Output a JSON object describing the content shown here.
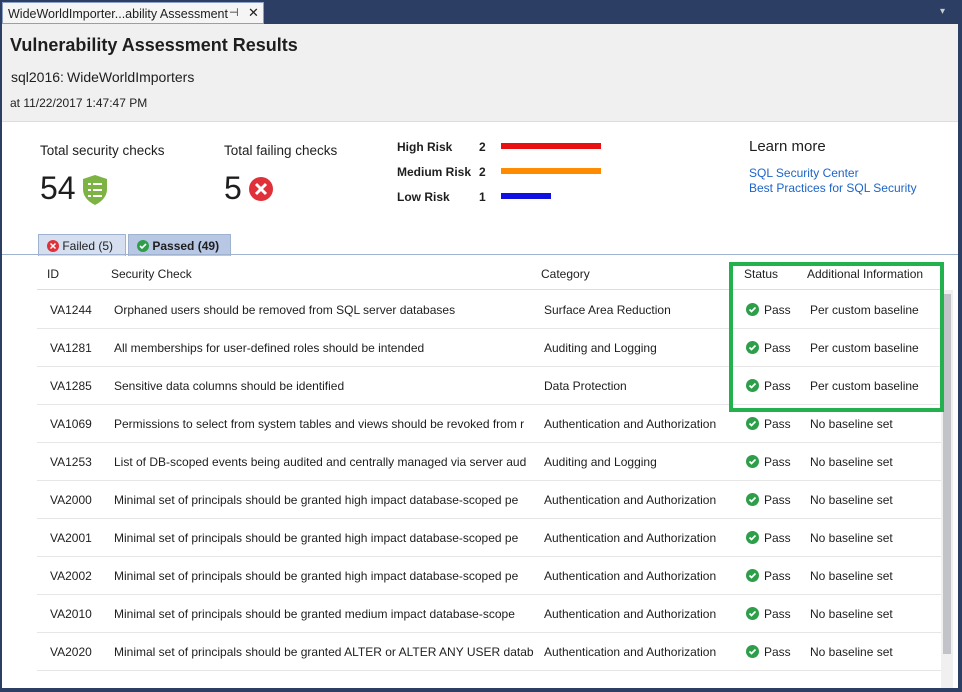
{
  "tab_title": "WideWorldImporter...ability Assessment",
  "header": {
    "title": "Vulnerability Assessment Results",
    "server": "sql2016:",
    "database": "WideWorldImporters",
    "timestamp": "at 11/22/2017 1:47:47 PM"
  },
  "summary": {
    "total_checks": {
      "label": "Total security checks",
      "value": 54
    },
    "failing_checks": {
      "label": "Total failing checks",
      "value": 5
    }
  },
  "risks": [
    {
      "label": "High Risk",
      "count": 2,
      "color": "#e81010"
    },
    {
      "label": "Medium Risk",
      "count": 2,
      "color": "#ff8c00"
    },
    {
      "label": "Low Risk",
      "count": 1,
      "color": "#1010e0"
    }
  ],
  "learn_more": {
    "title": "Learn more",
    "links": [
      "SQL Security Center",
      "Best Practices for SQL Security"
    ]
  },
  "tabs": [
    {
      "label": "Failed",
      "count": "(5)"
    },
    {
      "label": "Passed",
      "count": "(49)"
    }
  ],
  "table": {
    "columns": [
      "ID",
      "Security Check",
      "Category",
      "Status",
      "Additional Information"
    ],
    "rows": [
      [
        "VA1244",
        "Orphaned users should be removed from SQL server databases",
        "Surface Area Reduction",
        "Pass",
        "Per custom baseline"
      ],
      [
        "VA1281",
        "All memberships for user-defined roles should be intended",
        "Auditing and Logging",
        "Pass",
        "Per custom baseline"
      ],
      [
        "VA1285",
        "Sensitive data columns should be identified",
        "Data Protection",
        "Pass",
        "Per custom baseline"
      ],
      [
        "VA1069",
        "Permissions to select from system tables and views should be revoked from r",
        "Authentication and Authorization",
        "Pass",
        "No baseline set"
      ],
      [
        "VA1253",
        "List of DB-scoped events being audited and centrally managed via server aud",
        "Auditing and Logging",
        "Pass",
        "No baseline set"
      ],
      [
        "VA2000",
        "Minimal set of principals should be granted high impact database-scoped pe",
        "Authentication and Authorization",
        "Pass",
        "No baseline set"
      ],
      [
        "VA2001",
        "Minimal set of principals should be granted high impact database-scoped pe",
        "Authentication and Authorization",
        "Pass",
        "No baseline set"
      ],
      [
        "VA2002",
        "Minimal set of principals should be granted high impact database-scoped pe",
        "Authentication and Authorization",
        "Pass",
        "No baseline set"
      ],
      [
        "VA2010",
        "Minimal set of principals should be granted medium impact database-scope",
        "Authentication and Authorization",
        "Pass",
        "No baseline set"
      ],
      [
        "VA2020",
        "Minimal set of principals should be granted ALTER or ALTER ANY USER datab",
        "Authentication and Authorization",
        "Pass",
        "No baseline set"
      ]
    ]
  }
}
